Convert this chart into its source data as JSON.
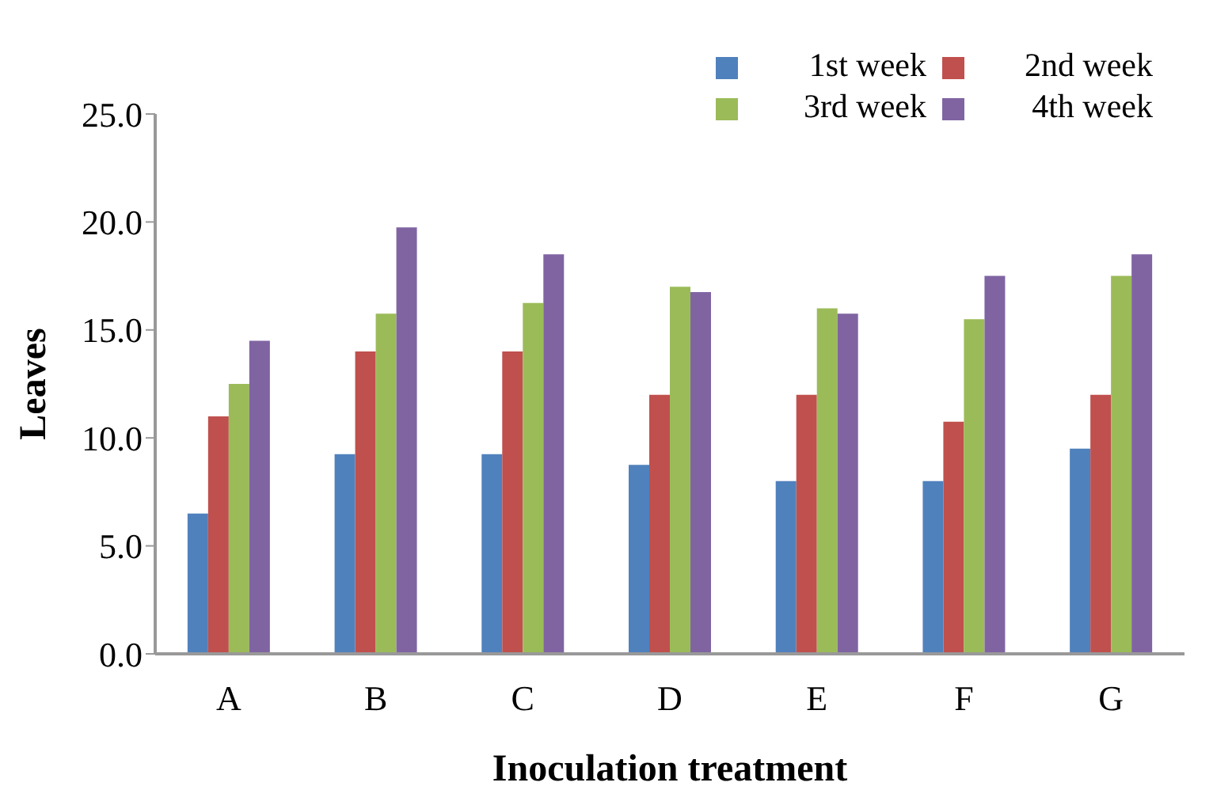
{
  "chart_data": {
    "type": "bar",
    "xlabel": "Inoculation treatment",
    "ylabel": "Leaves",
    "categories": [
      "A",
      "B",
      "C",
      "D",
      "E",
      "F",
      "G"
    ],
    "series": [
      {
        "name": "1st week",
        "color": "#4f81bd",
        "values": [
          6.5,
          9.25,
          9.25,
          8.75,
          8,
          8,
          9.5
        ]
      },
      {
        "name": "2nd week",
        "color": "#c0504d",
        "values": [
          11,
          14,
          14,
          12,
          12,
          10.75,
          12
        ]
      },
      {
        "name": "3rd week",
        "color": "#9bbb59",
        "values": [
          12.5,
          15.75,
          16.25,
          17,
          16,
          15.5,
          17.5
        ]
      },
      {
        "name": "4th week",
        "color": "#8064a2",
        "values": [
          14.5,
          19.75,
          18.5,
          16.75,
          15.75,
          17.5,
          18.5
        ]
      }
    ],
    "ylim": [
      0,
      25
    ],
    "yticks": [
      {
        "value": 0,
        "label": "0.0"
      },
      {
        "value": 5,
        "label": "5.0"
      },
      {
        "value": 10,
        "label": "10.0"
      },
      {
        "value": 15,
        "label": "15.0"
      },
      {
        "value": 20,
        "label": "20.0"
      },
      {
        "value": 25,
        "label": "25.0"
      }
    ],
    "grid": false,
    "legend": "top right"
  }
}
